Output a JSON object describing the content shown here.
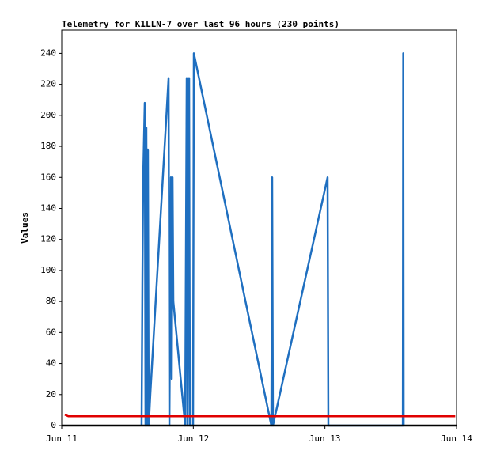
{
  "chart_data": {
    "type": "line",
    "title": "Telemetry for K1LLN-7 over last 96 hours (230 points)",
    "y_label": "Values",
    "xlim": [
      0,
      3
    ],
    "xticks": [
      {
        "value": 0,
        "label": "Jun 11"
      },
      {
        "value": 1,
        "label": "Jun 12"
      },
      {
        "value": 2,
        "label": "Jun 13"
      },
      {
        "value": 3,
        "label": "Jun 14"
      }
    ],
    "ylim": [
      0,
      255
    ],
    "yticks": [
      0,
      20,
      40,
      60,
      80,
      100,
      120,
      140,
      160,
      180,
      200,
      220,
      240
    ],
    "grid": false,
    "series": [
      {
        "color": "#1f6fc0",
        "x": [
          0.607,
          0.613,
          0.619,
          0.631,
          0.637,
          0.643,
          0.649,
          0.655,
          0.661,
          0.673,
          0.812,
          0.818,
          0.83,
          0.836,
          0.842,
          0.848,
          0.938,
          0.95,
          0.956,
          0.968,
          0.974,
          0.998,
          1.004,
          1.593,
          1.599,
          1.605,
          2.02,
          2.026,
          2.592,
          2.595,
          2.598
        ],
        "values": [
          0,
          90,
          160,
          208,
          0,
          192,
          0,
          178,
          0,
          20,
          224,
          0,
          160,
          30,
          160,
          80,
          0,
          224,
          0,
          224,
          0,
          0,
          240,
          0,
          160,
          0,
          160,
          0,
          0,
          240,
          0
        ]
      },
      {
        "color": "#e00000",
        "x": [
          0.024,
          0.05,
          2.99
        ],
        "values": [
          7,
          6,
          6
        ]
      }
    ]
  }
}
